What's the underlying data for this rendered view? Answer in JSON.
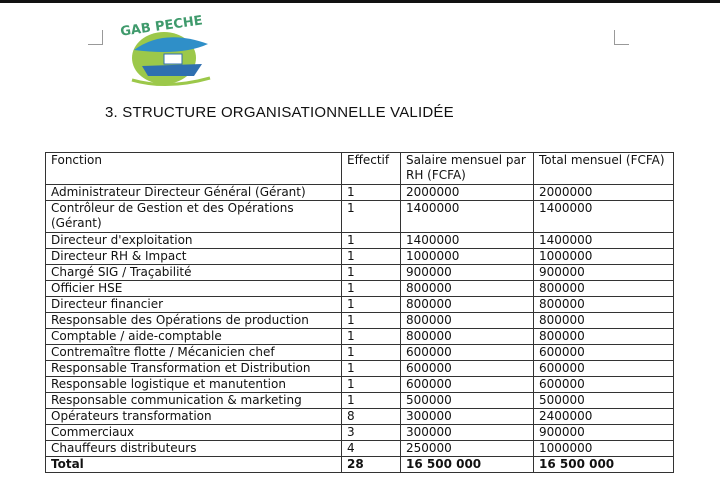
{
  "logo": {
    "text": "GAB PECHE"
  },
  "heading": "3. STRUCTURE ORGANISATIONNELLE VALIDÉE",
  "table": {
    "header": [
      "Fonction",
      "Effectif",
      "Salaire mensuel par RH (FCFA)",
      "Total mensuel (FCFA)"
    ],
    "rows": [
      [
        "Administrateur Directeur Général (Gérant)",
        "1",
        "2000000",
        "2000000"
      ],
      [
        "Contrôleur de Gestion et des Opérations (Gérant)",
        "1",
        "1400000",
        "1400000"
      ],
      [
        "Directeur d'exploitation",
        "1",
        "1400000",
        "1400000"
      ],
      [
        "Directeur RH & Impact",
        "1",
        "1000000",
        "1000000"
      ],
      [
        "Chargé SIG / Traçabilité",
        "1",
        "900000",
        "900000"
      ],
      [
        "Officier HSE",
        "1",
        "800000",
        "800000"
      ],
      [
        "Directeur financier",
        "1",
        "800000",
        "800000"
      ],
      [
        "Responsable des Opérations de production",
        "1",
        "800000",
        "800000"
      ],
      [
        "Comptable / aide-comptable",
        "1",
        "800000",
        "800000"
      ],
      [
        "Contremaître flotte / Mécanicien chef",
        "1",
        "600000",
        "600000"
      ],
      [
        "Responsable Transformation et Distribution",
        "1",
        "600000",
        "600000"
      ],
      [
        "Responsable logistique et manutention",
        "1",
        "600000",
        "600000"
      ],
      [
        "Responsable communication & marketing",
        "1",
        "500000",
        "500000"
      ],
      [
        "Opérateurs transformation",
        "8",
        "300000",
        "2400000"
      ],
      [
        "Commerciaux",
        "3",
        "300000",
        "900000"
      ],
      [
        "Chauffeurs distributeurs",
        "4",
        "250000",
        "1000000"
      ]
    ],
    "total": [
      "Total",
      "28",
      "16 500 000",
      "16 500 000"
    ]
  }
}
